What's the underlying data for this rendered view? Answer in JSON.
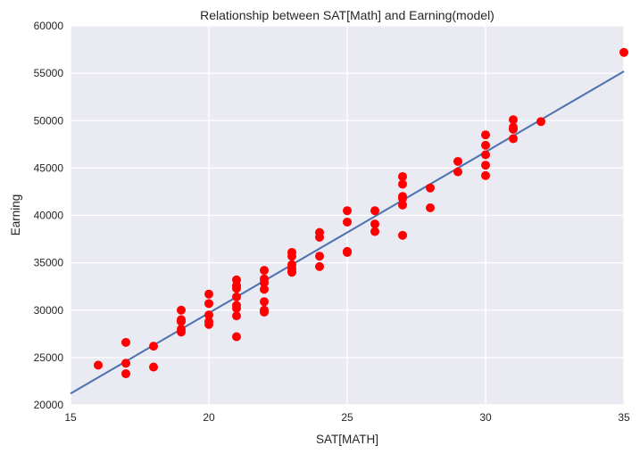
{
  "chart_data": {
    "type": "scatter",
    "title": "Relationship between SAT[Math] and Earning(model)",
    "xlabel": "SAT[MATH]",
    "ylabel": "Earning",
    "xlim": [
      15,
      35
    ],
    "ylim": [
      20000,
      60000
    ],
    "xticks": [
      "15",
      "20",
      "25",
      "30",
      "35"
    ],
    "yticks": [
      "20000",
      "25000",
      "30000",
      "35000",
      "40000",
      "45000",
      "50000",
      "55000",
      "60000"
    ],
    "grid": true,
    "background_color": "#eaeaf2",
    "grid_color": "#ffffff",
    "point_color": "#ff0000",
    "line_color": "#4c72b0",
    "points": [
      [
        16,
        24200
      ],
      [
        17,
        26600
      ],
      [
        17,
        24400
      ],
      [
        17,
        23300
      ],
      [
        18,
        26200
      ],
      [
        18,
        24000
      ],
      [
        19,
        30000
      ],
      [
        19,
        29000
      ],
      [
        19,
        28800
      ],
      [
        19,
        28000
      ],
      [
        19,
        27700
      ],
      [
        20,
        31700
      ],
      [
        20,
        30700
      ],
      [
        20,
        29500
      ],
      [
        20,
        28800
      ],
      [
        20,
        28500
      ],
      [
        21,
        33200
      ],
      [
        21,
        32600
      ],
      [
        21,
        32300
      ],
      [
        21,
        31400
      ],
      [
        21,
        30500
      ],
      [
        21,
        30200
      ],
      [
        21,
        29400
      ],
      [
        21,
        27200
      ],
      [
        22,
        34200
      ],
      [
        22,
        33300
      ],
      [
        22,
        32900
      ],
      [
        22,
        32200
      ],
      [
        22,
        30900
      ],
      [
        22,
        30000
      ],
      [
        22,
        29800
      ],
      [
        23,
        36100
      ],
      [
        23,
        35700
      ],
      [
        23,
        34800
      ],
      [
        23,
        34400
      ],
      [
        23,
        34000
      ],
      [
        23,
        34100
      ],
      [
        24,
        38200
      ],
      [
        24,
        37700
      ],
      [
        24,
        35700
      ],
      [
        24,
        34600
      ],
      [
        25,
        40500
      ],
      [
        25,
        39300
      ],
      [
        25,
        36200
      ],
      [
        25,
        36100
      ],
      [
        26,
        40500
      ],
      [
        26,
        39100
      ],
      [
        26,
        38300
      ],
      [
        27,
        44100
      ],
      [
        27,
        43300
      ],
      [
        27,
        42000
      ],
      [
        27,
        41800
      ],
      [
        27,
        41100
      ],
      [
        27,
        37900
      ],
      [
        28,
        42900
      ],
      [
        28,
        40800
      ],
      [
        29,
        45700
      ],
      [
        29,
        44600
      ],
      [
        30,
        48500
      ],
      [
        30,
        47400
      ],
      [
        30,
        46400
      ],
      [
        30,
        45300
      ],
      [
        30,
        44200
      ],
      [
        31,
        50100
      ],
      [
        31,
        49300
      ],
      [
        31,
        49100
      ],
      [
        31,
        48100
      ],
      [
        32,
        49900
      ],
      [
        35,
        57200
      ]
    ],
    "fit_line": {
      "x": [
        15,
        35
      ],
      "y": [
        21200,
        55200
      ]
    }
  }
}
